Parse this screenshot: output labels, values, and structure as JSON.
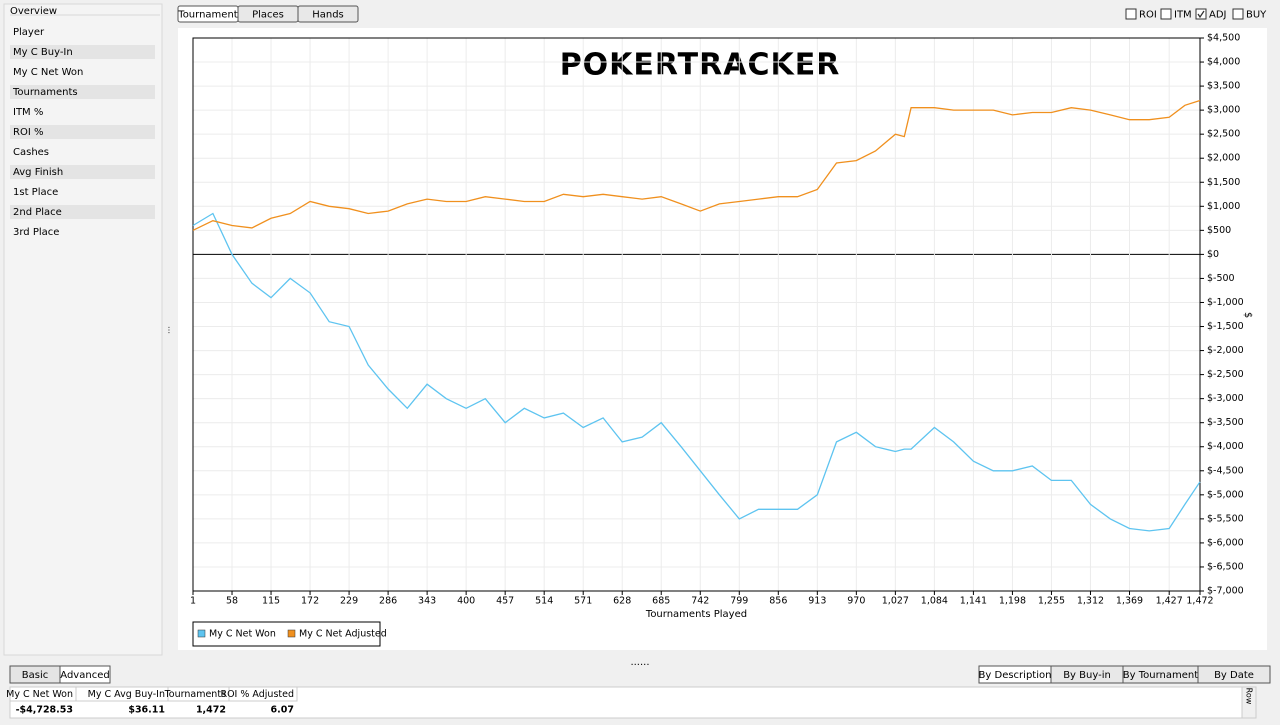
{
  "sidebar": {
    "title": "Overview",
    "items": [
      "Player",
      "My C Buy-In",
      "My C Net Won",
      "Tournaments",
      "ITM %",
      "ROI %",
      "Cashes",
      "Avg Finish",
      "1st Place",
      "2nd Place",
      "3rd Place"
    ]
  },
  "tabs": [
    "Tournament",
    "Places",
    "Hands"
  ],
  "checkboxes": [
    {
      "label": "ROI",
      "checked": false
    },
    {
      "label": "ITM",
      "checked": false
    },
    {
      "label": "ADJ",
      "checked": true
    },
    {
      "label": "BUY",
      "checked": false
    }
  ],
  "chart_data": {
    "type": "line",
    "watermark": "POKERTRACKER",
    "xlabel": "Tournaments Played",
    "ylabel": "$",
    "grid": true,
    "legend": "bottom-left",
    "x": [
      1,
      30,
      58,
      87,
      115,
      143,
      172,
      200,
      229,
      257,
      286,
      314,
      343,
      371,
      400,
      428,
      457,
      485,
      514,
      542,
      571,
      600,
      628,
      657,
      685,
      714,
      742,
      770,
      799,
      827,
      856,
      884,
      913,
      941,
      970,
      998,
      1027,
      1040,
      1050,
      1084,
      1112,
      1141,
      1170,
      1198,
      1227,
      1255,
      1284,
      1312,
      1341,
      1369,
      1398,
      1427,
      1450,
      1472
    ],
    "series": [
      {
        "name": "My C Net Won",
        "color": "#5ec4f0",
        "values": [
          600,
          850,
          0,
          -600,
          -900,
          -500,
          -800,
          -1400,
          -1500,
          -2300,
          -2800,
          -3200,
          -2700,
          -3000,
          -3200,
          -3000,
          -3500,
          -3200,
          -3400,
          -3300,
          -3600,
          -3400,
          -3900,
          -3800,
          -3500,
          -4000,
          -4500,
          -5000,
          -5500,
          -5300,
          -5300,
          -5300,
          -5000,
          -3900,
          -3700,
          -4000,
          -4100,
          -4050,
          -4050,
          -3600,
          -3900,
          -4300,
          -4500,
          -4500,
          -4400,
          -4700,
          -4700,
          -5200,
          -5500,
          -5700,
          -5750,
          -5700,
          -5200,
          -4728.53
        ]
      },
      {
        "name": "My C Net Adjusted",
        "color": "#f0901e",
        "values": [
          500,
          700,
          600,
          550,
          750,
          850,
          1100,
          1000,
          950,
          850,
          900,
          1050,
          1150,
          1100,
          1100,
          1200,
          1150,
          1100,
          1100,
          1250,
          1200,
          1250,
          1200,
          1150,
          1200,
          1050,
          900,
          1050,
          1100,
          1150,
          1200,
          1200,
          1350,
          1900,
          1950,
          2150,
          2500,
          2450,
          3050,
          3050,
          3000,
          3000,
          3000,
          2900,
          2950,
          2950,
          3050,
          3000,
          2900,
          2800,
          2800,
          2850,
          3100,
          3200
        ]
      }
    ],
    "xlim": [
      1,
      1472
    ],
    "xticks": [
      1,
      58,
      115,
      172,
      229,
      286,
      343,
      400,
      457,
      514,
      571,
      628,
      685,
      742,
      799,
      856,
      913,
      970,
      {
        "value": 1027,
        "label": "1,027"
      },
      {
        "value": 1084,
        "label": "1,084"
      },
      {
        "value": 1141,
        "label": "1,141"
      },
      {
        "value": 1198,
        "label": "1,198"
      },
      {
        "value": 1255,
        "label": "1,255"
      },
      {
        "value": 1312,
        "label": "1,312"
      },
      {
        "value": 1369,
        "label": "1,369"
      },
      {
        "value": 1427,
        "label": "1,427"
      },
      {
        "value": 1472,
        "label": "1,472"
      }
    ],
    "ylim": [
      -7000,
      4500
    ],
    "yticks": [
      {
        "value": 4500,
        "label": "$4,500"
      },
      {
        "value": 4000,
        "label": "$4,000"
      },
      {
        "value": 3500,
        "label": "$3,500"
      },
      {
        "value": 3000,
        "label": "$3,000"
      },
      {
        "value": 2500,
        "label": "$2,500"
      },
      {
        "value": 2000,
        "label": "$2,000"
      },
      {
        "value": 1500,
        "label": "$1,500"
      },
      {
        "value": 1000,
        "label": "$1,000"
      },
      {
        "value": 500,
        "label": "$500"
      },
      {
        "value": 0,
        "label": "$0"
      },
      {
        "value": -500,
        "label": "$-500"
      },
      {
        "value": -1000,
        "label": "$-1,000"
      },
      {
        "value": -1500,
        "label": "$-1,500"
      },
      {
        "value": -2000,
        "label": "$-2,000"
      },
      {
        "value": -2500,
        "label": "$-2,500"
      },
      {
        "value": -3000,
        "label": "$-3,000"
      },
      {
        "value": -3500,
        "label": "$-3,500"
      },
      {
        "value": -4000,
        "label": "$-4,000"
      },
      {
        "value": -4500,
        "label": "$-4,500"
      },
      {
        "value": -5000,
        "label": "$-5,000"
      },
      {
        "value": -5500,
        "label": "$-5,500"
      },
      {
        "value": -6000,
        "label": "$-6,000"
      },
      {
        "value": -6500,
        "label": "$-6,500"
      },
      {
        "value": -7000,
        "label": "$-7,000"
      }
    ]
  },
  "view_buttons": [
    "Basic",
    "Advanced"
  ],
  "sort_buttons": [
    "By Description",
    "By Buy-in",
    "By Tournament",
    "By Date"
  ],
  "table": {
    "headers": [
      "My C Net Won",
      "My C Avg Buy-In",
      "Tournaments",
      "ROI % Adjusted"
    ],
    "rows": [
      [
        "-$4,728.53",
        "$36.11",
        "1,472",
        "6.07"
      ]
    ]
  },
  "row_label": "Row"
}
